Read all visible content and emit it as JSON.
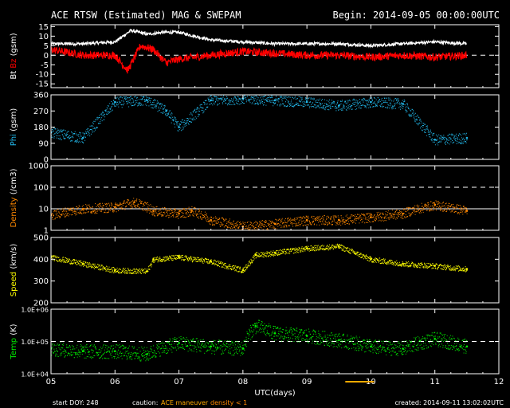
{
  "header": {
    "title": "ACE RTSW (Estimated) MAG & SWEPAM",
    "begin": "Begin: 2014-09-05 00:00:00UTC"
  },
  "footer": {
    "start_doy": "start DOY: 248",
    "caution_label": "caution:",
    "caution_maneuver": "ACE maneuver",
    "caution_density": "density < 1",
    "created": "created: 2014-09-11 13:02:02UTC"
  },
  "colors": {
    "bt": "#ffffff",
    "bz": "#ff0000",
    "phi": "#22bbee",
    "density": "#ff8800",
    "speed": "#ffff00",
    "temp": "#00ee00",
    "maneuver": "#ffaa00"
  },
  "chart_data": [
    {
      "type": "line",
      "panel": "mag",
      "ylabel_parts": [
        "Bt",
        "Bz",
        "(gsm)"
      ],
      "ytick_labels": [
        "15",
        "10",
        "5",
        "0",
        "-5",
        "-10",
        "-15"
      ],
      "ylim": [
        -17,
        16
      ],
      "series": [
        {
          "name": "Bt",
          "x": [
            5.0,
            5.5,
            6.0,
            6.25,
            6.5,
            6.75,
            7.0,
            7.5,
            8.0,
            8.5,
            9.0,
            9.5,
            10.0,
            10.5,
            11.0,
            11.5
          ],
          "values": [
            6,
            6,
            7,
            13,
            11,
            12,
            12,
            8,
            7,
            6,
            6,
            6,
            5,
            6,
            7,
            6
          ]
        },
        {
          "name": "Bz",
          "x": [
            5.0,
            5.5,
            6.0,
            6.2,
            6.4,
            6.6,
            6.8,
            7.0,
            7.5,
            8.0,
            8.5,
            9.0,
            9.5,
            10.0,
            10.5,
            11.0,
            11.5
          ],
          "values": [
            3,
            0,
            0,
            -8,
            5,
            3,
            -4,
            -2,
            0,
            2,
            1,
            0,
            0,
            -1,
            0,
            -1,
            0
          ]
        }
      ]
    },
    {
      "type": "scatter",
      "panel": "phi",
      "ylabel_parts": [
        "Phi",
        "(gsm)"
      ],
      "ytick_labels": [
        "360",
        "270",
        "180",
        "90",
        "0"
      ],
      "ylim": [
        0,
        360
      ],
      "series": [
        {
          "name": "Phi",
          "x": [
            5.0,
            5.5,
            6.0,
            6.5,
            6.8,
            7.0,
            7.5,
            8.0,
            8.5,
            9.0,
            9.5,
            10.0,
            10.5,
            11.0,
            11.5
          ],
          "values": [
            150,
            120,
            320,
            330,
            270,
            180,
            330,
            340,
            330,
            320,
            300,
            320,
            310,
            110,
            120
          ]
        }
      ]
    },
    {
      "type": "scatter",
      "panel": "density",
      "ylabel_parts": [
        "Density",
        "(/cm3)"
      ],
      "ytick_labels": [
        "1000",
        "100",
        "10",
        "1"
      ],
      "yscale": "log",
      "ylim": [
        1,
        1000
      ],
      "series": [
        {
          "name": "Density",
          "x": [
            5.0,
            5.5,
            6.0,
            6.3,
            6.6,
            7.0,
            7.2,
            7.5,
            8.0,
            8.5,
            9.0,
            9.5,
            10.0,
            10.5,
            11.0,
            11.5
          ],
          "values": [
            5,
            10,
            12,
            20,
            8,
            6,
            8,
            3,
            1.5,
            2,
            3,
            3,
            4,
            6,
            15,
            8
          ]
        }
      ]
    },
    {
      "type": "scatter",
      "panel": "speed",
      "ylabel_parts": [
        "Speed",
        "(km/s)"
      ],
      "ytick_labels": [
        "500",
        "400",
        "300",
        "200"
      ],
      "ylim": [
        200,
        500
      ],
      "series": [
        {
          "name": "Speed",
          "x": [
            5.0,
            5.5,
            6.0,
            6.5,
            6.6,
            7.0,
            7.5,
            8.0,
            8.2,
            8.5,
            9.0,
            9.5,
            10.0,
            10.5,
            11.0,
            11.5
          ],
          "values": [
            410,
            380,
            350,
            345,
            400,
            410,
            390,
            350,
            420,
            430,
            450,
            460,
            400,
            380,
            370,
            355
          ]
        }
      ]
    },
    {
      "type": "scatter",
      "panel": "temp",
      "ylabel_parts": [
        "Temp",
        "(K)"
      ],
      "ytick_labels": [
        "1.0E+06",
        "1.0E+05",
        "1.0E+04"
      ],
      "yscale": "log",
      "ylim": [
        10000,
        1000000
      ],
      "series": [
        {
          "name": "Temp",
          "x": [
            5.0,
            5.5,
            6.0,
            6.5,
            7.0,
            7.5,
            8.0,
            8.2,
            8.5,
            9.0,
            9.5,
            10.0,
            10.5,
            11.0,
            11.5
          ],
          "values": [
            60000,
            50000,
            50000,
            40000,
            90000,
            70000,
            60000,
            300000,
            180000,
            150000,
            110000,
            70000,
            60000,
            120000,
            70000
          ]
        }
      ]
    }
  ],
  "xaxis": {
    "label": "UTC(days)",
    "tick_labels": [
      "05",
      "06",
      "07",
      "08",
      "09",
      "10",
      "11",
      "12"
    ],
    "xlim": [
      5,
      12
    ]
  }
}
